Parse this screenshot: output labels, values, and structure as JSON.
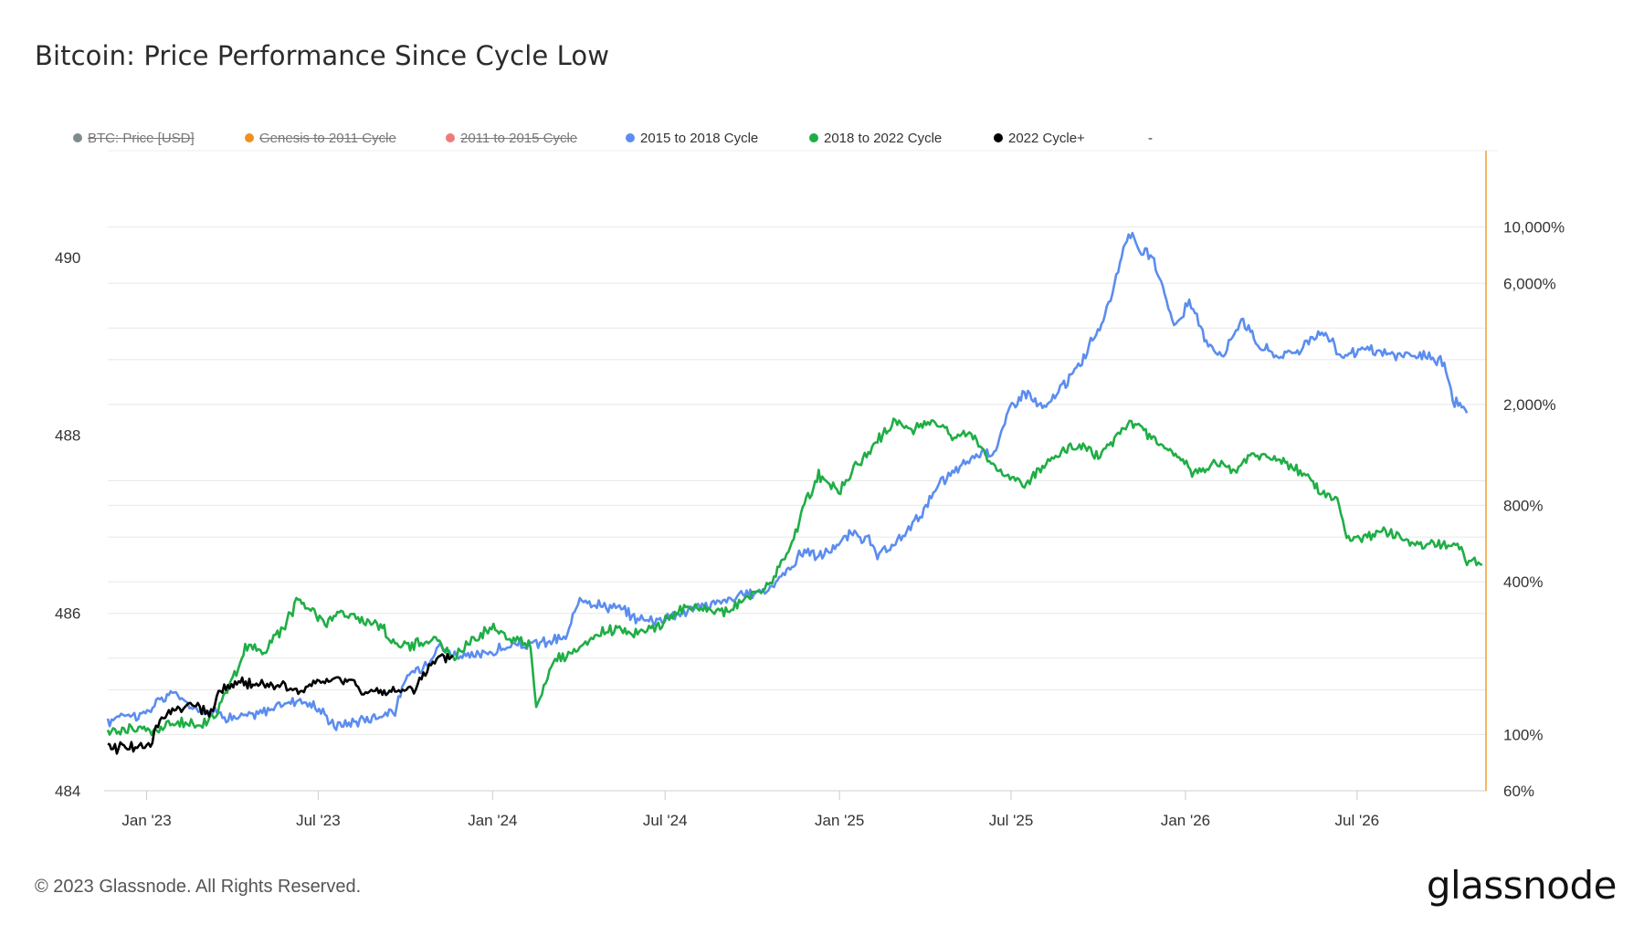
{
  "title": "Bitcoin: Price Performance Since Cycle Low",
  "footer": "© 2023 Glassnode. All Rights Reserved.",
  "logo": "glassnode",
  "legend": [
    {
      "label": "BTC: Price [USD]",
      "color": "#7f8c8d",
      "enabled": false
    },
    {
      "label": "Genesis to 2011 Cycle",
      "color": "#f0901e",
      "enabled": false
    },
    {
      "label": "2011 to 2015 Cycle",
      "color": "#f07a7a",
      "enabled": false
    },
    {
      "label": "2015 to 2018 Cycle",
      "color": "#5b8def",
      "enabled": true
    },
    {
      "label": "2018 to 2022 Cycle",
      "color": "#1fae45",
      "enabled": true
    },
    {
      "label": "2022 Cycle+",
      "color": "#000000",
      "enabled": true
    },
    {
      "label": "-",
      "color": "",
      "enabled": true
    }
  ],
  "chart_data": {
    "type": "line",
    "x_ticks": [
      "Jan '23",
      "Jul '23",
      "Jan '24",
      "Jul '24",
      "Jan '25",
      "Jul '25",
      "Jan '26",
      "Jul '26"
    ],
    "x_range": [
      "2022-11-21",
      "2026-11-15"
    ],
    "left_axis": {
      "ticks": [
        "490",
        "488",
        "486",
        "484"
      ],
      "range": [
        484,
        491.2
      ]
    },
    "right_axis": {
      "scale": "log",
      "ticks": [
        "10,000%",
        "6,000%",
        "2,000%",
        "800%",
        "400%",
        "100%",
        "60%"
      ],
      "range": [
        60,
        20000
      ]
    },
    "grid": true,
    "series": [
      {
        "name": "2015 to 2018 Cycle",
        "color": "#5b8def",
        "axis": "right",
        "points": [
          [
            "2022-11-21",
            110
          ],
          [
            "2022-12-05",
            122
          ],
          [
            "2022-12-25",
            118
          ],
          [
            "2023-01-15",
            135
          ],
          [
            "2023-01-30",
            148
          ],
          [
            "2023-02-15",
            128
          ],
          [
            "2023-03-10",
            124
          ],
          [
            "2023-04-01",
            116
          ],
          [
            "2023-04-25",
            119
          ],
          [
            "2023-05-15",
            128
          ],
          [
            "2023-06-10",
            138
          ],
          [
            "2023-06-30",
            127
          ],
          [
            "2023-07-20",
            108
          ],
          [
            "2023-08-10",
            113
          ],
          [
            "2023-08-31",
            118
          ],
          [
            "2023-09-20",
            124
          ],
          [
            "2023-10-05",
            175
          ],
          [
            "2023-10-20",
            185
          ],
          [
            "2023-11-05",
            225
          ],
          [
            "2023-11-20",
            208
          ],
          [
            "2023-12-10",
            202
          ],
          [
            "2023-12-31",
            212
          ],
          [
            "2024-01-20",
            222
          ],
          [
            "2024-02-10",
            226
          ],
          [
            "2024-03-01",
            232
          ],
          [
            "2024-03-20",
            242
          ],
          [
            "2024-04-02",
            355
          ],
          [
            "2024-04-20",
            325
          ],
          [
            "2024-05-10",
            318
          ],
          [
            "2024-05-31",
            288
          ],
          [
            "2024-06-20",
            282
          ],
          [
            "2024-07-15",
            300
          ],
          [
            "2024-08-05",
            318
          ],
          [
            "2024-08-31",
            335
          ],
          [
            "2024-09-25",
            355
          ],
          [
            "2024-10-20",
            378
          ],
          [
            "2024-11-10",
            455
          ],
          [
            "2024-11-25",
            535
          ],
          [
            "2024-12-10",
            500
          ],
          [
            "2024-12-31",
            560
          ],
          [
            "2025-01-15",
            620
          ],
          [
            "2025-02-01",
            580
          ],
          [
            "2025-02-10",
            500
          ],
          [
            "2025-03-01",
            560
          ],
          [
            "2025-03-25",
            720
          ],
          [
            "2025-04-20",
            1000
          ],
          [
            "2025-05-10",
            1150
          ],
          [
            "2025-05-31",
            1300
          ],
          [
            "2025-06-15",
            1320
          ],
          [
            "2025-06-30",
            1950
          ],
          [
            "2025-07-15",
            2250
          ],
          [
            "2025-08-05",
            1900
          ],
          [
            "2025-08-20",
            2250
          ],
          [
            "2025-09-10",
            2800
          ],
          [
            "2025-09-25",
            3600
          ],
          [
            "2025-10-10",
            4600
          ],
          [
            "2025-10-22",
            6900
          ],
          [
            "2025-11-02",
            9800
          ],
          [
            "2025-11-12",
            8000
          ],
          [
            "2025-11-25",
            7800
          ],
          [
            "2025-12-10",
            5600
          ],
          [
            "2025-12-20",
            4000
          ],
          [
            "2026-01-05",
            5000
          ],
          [
            "2026-01-25",
            3500
          ],
          [
            "2026-02-10",
            3100
          ],
          [
            "2026-03-01",
            4400
          ],
          [
            "2026-03-20",
            3400
          ],
          [
            "2026-04-10",
            3100
          ],
          [
            "2026-05-01",
            3300
          ],
          [
            "2026-05-25",
            3900
          ],
          [
            "2026-06-15",
            3100
          ],
          [
            "2026-07-10",
            3300
          ],
          [
            "2026-08-01",
            3150
          ],
          [
            "2026-08-25",
            3100
          ],
          [
            "2026-09-15",
            3100
          ],
          [
            "2026-10-01",
            2900
          ],
          [
            "2026-10-10",
            2100
          ],
          [
            "2026-10-25",
            1850
          ]
        ]
      },
      {
        "name": "2018 to 2022 Cycle",
        "color": "#1fae45",
        "axis": "right",
        "points": [
          [
            "2022-11-21",
            102
          ],
          [
            "2022-12-10",
            106
          ],
          [
            "2023-01-10",
            104
          ],
          [
            "2023-02-05",
            112
          ],
          [
            "2023-02-25",
            108
          ],
          [
            "2023-03-15",
            122
          ],
          [
            "2023-03-31",
            158
          ],
          [
            "2023-04-15",
            220
          ],
          [
            "2023-05-05",
            215
          ],
          [
            "2023-05-25",
            265
          ],
          [
            "2023-06-10",
            340
          ],
          [
            "2023-06-25",
            310
          ],
          [
            "2023-07-10",
            275
          ],
          [
            "2023-07-25",
            305
          ],
          [
            "2023-08-10",
            285
          ],
          [
            "2023-09-01",
            275
          ],
          [
            "2023-09-20",
            230
          ],
          [
            "2023-10-10",
            225
          ],
          [
            "2023-10-31",
            240
          ],
          [
            "2023-11-20",
            200
          ],
          [
            "2023-12-10",
            235
          ],
          [
            "2023-12-31",
            265
          ],
          [
            "2024-01-25",
            235
          ],
          [
            "2024-02-10",
            225
          ],
          [
            "2024-02-16",
            128
          ],
          [
            "2024-03-05",
            195
          ],
          [
            "2024-03-25",
            205
          ],
          [
            "2024-04-20",
            245
          ],
          [
            "2024-05-10",
            262
          ],
          [
            "2024-05-31",
            252
          ],
          [
            "2024-06-20",
            262
          ],
          [
            "2024-07-15",
            312
          ],
          [
            "2024-08-10",
            312
          ],
          [
            "2024-09-01",
            302
          ],
          [
            "2024-09-25",
            345
          ],
          [
            "2024-10-20",
            390
          ],
          [
            "2024-11-10",
            545
          ],
          [
            "2024-11-25",
            800
          ],
          [
            "2024-12-10",
            1050
          ],
          [
            "2024-12-31",
            910
          ],
          [
            "2025-01-20",
            1150
          ],
          [
            "2025-02-10",
            1450
          ],
          [
            "2025-03-01",
            1700
          ],
          [
            "2025-03-20",
            1600
          ],
          [
            "2025-04-10",
            1750
          ],
          [
            "2025-04-30",
            1500
          ],
          [
            "2025-05-20",
            1550
          ],
          [
            "2025-06-10",
            1150
          ],
          [
            "2025-06-30",
            1050
          ],
          [
            "2025-07-15",
            950
          ],
          [
            "2025-08-05",
            1180
          ],
          [
            "2025-08-25",
            1320
          ],
          [
            "2025-09-15",
            1380
          ],
          [
            "2025-10-01",
            1230
          ],
          [
            "2025-10-20",
            1500
          ],
          [
            "2025-11-05",
            1700
          ],
          [
            "2025-11-20",
            1550
          ],
          [
            "2025-12-10",
            1330
          ],
          [
            "2025-12-31",
            1200
          ],
          [
            "2026-01-10",
            1050
          ],
          [
            "2026-01-31",
            1180
          ],
          [
            "2026-02-20",
            1100
          ],
          [
            "2026-03-10",
            1250
          ],
          [
            "2026-04-01",
            1250
          ],
          [
            "2026-04-20",
            1150
          ],
          [
            "2026-05-10",
            1050
          ],
          [
            "2026-05-25",
            880
          ],
          [
            "2026-06-10",
            850
          ],
          [
            "2026-06-20",
            580
          ],
          [
            "2026-07-10",
            600
          ],
          [
            "2026-07-31",
            640
          ],
          [
            "2026-08-20",
            580
          ],
          [
            "2026-09-10",
            550
          ],
          [
            "2026-10-01",
            560
          ],
          [
            "2026-10-15",
            570
          ],
          [
            "2026-10-25",
            480
          ],
          [
            "2026-11-10",
            465
          ]
        ]
      },
      {
        "name": "2022 Cycle+",
        "color": "#000000",
        "axis": "right",
        "points": [
          [
            "2022-11-21",
            88
          ],
          [
            "2022-12-10",
            90
          ],
          [
            "2023-01-05",
            89
          ],
          [
            "2023-01-15",
            115
          ],
          [
            "2023-02-01",
            128
          ],
          [
            "2023-02-20",
            130
          ],
          [
            "2023-03-10",
            120
          ],
          [
            "2023-03-20",
            150
          ],
          [
            "2023-04-10",
            160
          ],
          [
            "2023-04-25",
            158
          ],
          [
            "2023-05-10",
            157
          ],
          [
            "2023-05-25",
            155
          ],
          [
            "2023-06-10",
            148
          ],
          [
            "2023-06-20",
            150
          ],
          [
            "2023-06-30",
            162
          ],
          [
            "2023-07-20",
            164
          ],
          [
            "2023-08-10",
            162
          ],
          [
            "2023-08-16",
            147
          ],
          [
            "2023-09-01",
            145
          ],
          [
            "2023-09-20",
            148
          ],
          [
            "2023-10-10",
            152
          ],
          [
            "2023-10-20",
            172
          ],
          [
            "2023-11-05",
            196
          ],
          [
            "2023-11-20",
            205
          ]
        ]
      }
    ]
  }
}
